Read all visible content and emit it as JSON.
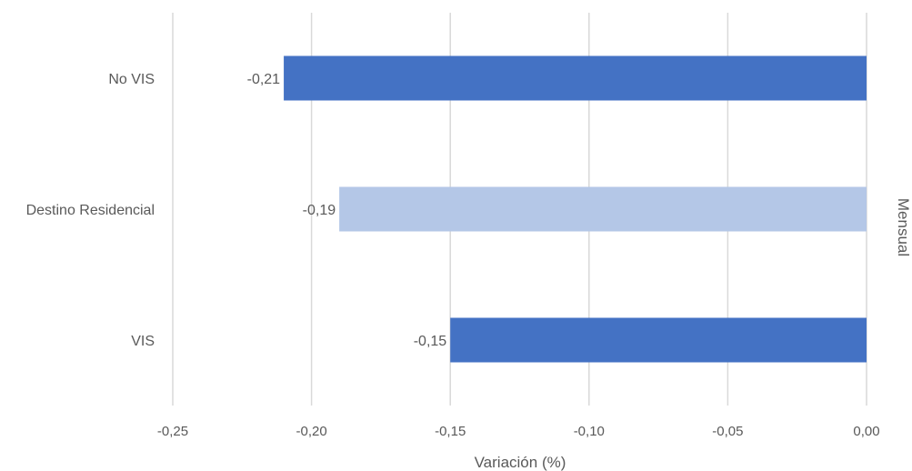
{
  "chart_data": {
    "type": "bar",
    "orientation": "horizontal",
    "categories": [
      "No VIS",
      "Destino Residencial",
      "VIS"
    ],
    "values": [
      -0.21,
      -0.19,
      -0.15
    ],
    "data_labels": [
      "-0,21",
      "-0,19",
      "-0,15"
    ],
    "bar_colors": [
      "#4472C4",
      "#B4C7E7",
      "#4472C4"
    ],
    "xlabel": "Variación (%)",
    "side_label": "Mensual",
    "xlim": [
      -0.25,
      0.0
    ],
    "xticks": [
      -0.25,
      -0.2,
      -0.15,
      -0.1,
      -0.05,
      0.0
    ],
    "xtick_labels": [
      "-0,25",
      "-0,20",
      "-0,15",
      "-0,10",
      "-0,05",
      "0,00"
    ],
    "grid": "vertical",
    "gridline_color": "#D9D9D9"
  }
}
